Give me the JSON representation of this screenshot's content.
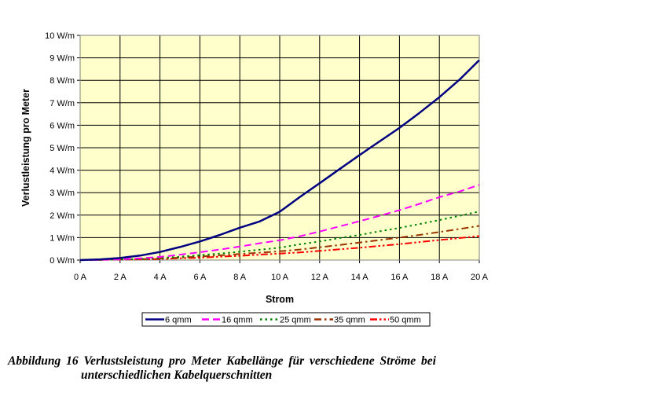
{
  "chart_data": {
    "type": "line",
    "title": "",
    "xlabel": "Strom",
    "ylabel": "Verlustleistung pro Meter",
    "x": [
      0,
      1,
      2,
      3,
      4,
      5,
      6,
      7,
      8,
      9,
      10,
      11,
      12,
      13,
      14,
      15,
      16,
      17,
      18,
      19,
      20
    ],
    "xticks": [
      "0 A",
      "2 A",
      "4 A",
      "6 A",
      "8 A",
      "10 A",
      "12 A",
      "14 A",
      "16 A",
      "18 A",
      "20 A"
    ],
    "yticks": [
      "0 W/m",
      "1 W/m",
      "2 W/m",
      "3 W/m",
      "4 W/m",
      "5 W/m",
      "6 W/m",
      "7 W/m",
      "8 W/m",
      "9 W/m",
      "10 W/m"
    ],
    "xlim": [
      0,
      20
    ],
    "ylim": [
      0,
      10
    ],
    "grid": true,
    "plot_background": "#ffffcc",
    "legend_position": "bottom",
    "series": [
      {
        "name": "6 qmm",
        "color": "#000080",
        "style": "solid",
        "values": [
          0,
          0.03,
          0.09,
          0.2,
          0.36,
          0.58,
          0.83,
          1.12,
          1.44,
          1.72,
          2.15,
          2.8,
          3.42,
          4.05,
          4.67,
          5.28,
          5.88,
          6.55,
          7.25,
          8.02,
          8.9
        ]
      },
      {
        "name": "16 qmm",
        "color": "#ff00ff",
        "style": "dash",
        "values": [
          0,
          0.01,
          0.03,
          0.08,
          0.14,
          0.24,
          0.35,
          0.47,
          0.6,
          0.75,
          0.88,
          1.06,
          1.27,
          1.5,
          1.73,
          1.97,
          2.22,
          2.5,
          2.8,
          3.05,
          3.35
        ]
      },
      {
        "name": "25 qmm",
        "color": "#008000",
        "style": "dot",
        "values": [
          0,
          0.01,
          0.02,
          0.05,
          0.09,
          0.15,
          0.22,
          0.29,
          0.37,
          0.46,
          0.55,
          0.7,
          0.83,
          0.98,
          1.12,
          1.28,
          1.43,
          1.6,
          1.78,
          1.97,
          2.16
        ]
      },
      {
        "name": "35 qmm",
        "color": "#993300",
        "style": "dashdot",
        "values": [
          0,
          0.01,
          0.02,
          0.04,
          0.07,
          0.11,
          0.16,
          0.21,
          0.27,
          0.33,
          0.39,
          0.47,
          0.57,
          0.67,
          0.78,
          0.89,
          1.0,
          1.12,
          1.25,
          1.38,
          1.52
        ]
      },
      {
        "name": "50 qmm",
        "color": "#ff0000",
        "style": "dashdotdot",
        "values": [
          0,
          0.01,
          0.02,
          0.03,
          0.05,
          0.08,
          0.11,
          0.15,
          0.19,
          0.24,
          0.29,
          0.34,
          0.41,
          0.48,
          0.55,
          0.63,
          0.71,
          0.8,
          0.89,
          0.98,
          1.07
        ]
      }
    ]
  },
  "caption": {
    "line1": "Abbildung 16 Verlustsleistung pro Meter Kabellänge für verschiedene Ströme bei",
    "line2": "unterschiedlichen Kabelquerschnitten"
  }
}
